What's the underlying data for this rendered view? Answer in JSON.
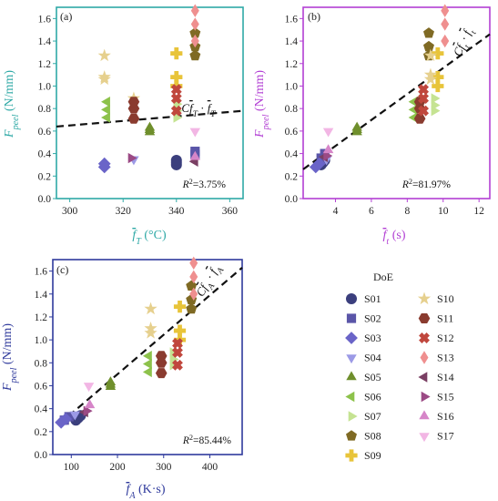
{
  "legend": {
    "title": "DoE",
    "entries": [
      {
        "name": "S01",
        "marker": "circle",
        "color": "#3b3f7d"
      },
      {
        "name": "S02",
        "marker": "square",
        "color": "#5a55a8"
      },
      {
        "name": "S03",
        "marker": "diamond",
        "color": "#6a64c8"
      },
      {
        "name": "S04",
        "marker": "triangle-down",
        "color": "#9c9ae6"
      },
      {
        "name": "S05",
        "marker": "triangle-up",
        "color": "#6f8f2c"
      },
      {
        "name": "S06",
        "marker": "triangle-left",
        "color": "#8dc24b"
      },
      {
        "name": "S07",
        "marker": "triangle-right",
        "color": "#c5e392"
      },
      {
        "name": "S08",
        "marker": "pentagon",
        "color": "#7f6a24"
      },
      {
        "name": "S09",
        "marker": "plus",
        "color": "#e8c43a"
      },
      {
        "name": "S10",
        "marker": "star",
        "color": "#e6d08e"
      },
      {
        "name": "S11",
        "marker": "hexagon",
        "color": "#8a3b2f"
      },
      {
        "name": "S12",
        "marker": "x",
        "color": "#c0473d"
      },
      {
        "name": "S13",
        "marker": "thin-diamond",
        "color": "#ef8f8f"
      },
      {
        "name": "S14",
        "marker": "triangle-left",
        "color": "#7a3f63"
      },
      {
        "name": "S15",
        "marker": "triangle-right",
        "color": "#9b4a85"
      },
      {
        "name": "S16",
        "marker": "triangle-up",
        "color": "#d685c8"
      },
      {
        "name": "S17",
        "marker": "triangle-down",
        "color": "#f2b6e4"
      }
    ]
  },
  "chart_data": [
    {
      "panel": "(a)",
      "type": "scatter",
      "frame_color": "#2fa9a6",
      "xlabel": "f̄_T (°C)",
      "ylabel": "F_peel (N/mm)",
      "xlim": [
        295,
        365
      ],
      "ylim": [
        0,
        1.7
      ],
      "xticks": [
        300,
        320,
        340,
        360
      ],
      "yticks": [
        0.0,
        0.2,
        0.4,
        0.6,
        0.8,
        1.0,
        1.2,
        1.4,
        1.6
      ],
      "fit_label": "C_f̄T · f̄_T",
      "r2_label": "R²=3.75%",
      "fit_line": {
        "x": [
          295,
          365
        ],
        "y": [
          0.64,
          0.78
        ]
      },
      "series": [
        {
          "name": "S01",
          "x": [
            340,
            340,
            340
          ],
          "y": [
            0.3,
            0.32,
            0.34
          ]
        },
        {
          "name": "S02",
          "x": [
            347,
            347
          ],
          "y": [
            0.39,
            0.42
          ]
        },
        {
          "name": "S03",
          "x": [
            313,
            313
          ],
          "y": [
            0.28,
            0.31
          ]
        },
        {
          "name": "S04",
          "x": [
            324
          ],
          "y": [
            0.35
          ]
        },
        {
          "name": "S05",
          "x": [
            330,
            330,
            330
          ],
          "y": [
            0.59,
            0.61,
            0.63
          ]
        },
        {
          "name": "S06",
          "x": [
            314,
            314,
            314
          ],
          "y": [
            0.72,
            0.79,
            0.86
          ]
        },
        {
          "name": "S07",
          "x": [
            340,
            340,
            340
          ],
          "y": [
            0.72,
            0.78,
            0.84
          ]
        },
        {
          "name": "S08",
          "x": [
            347,
            347,
            347
          ],
          "y": [
            1.27,
            1.35,
            1.47
          ]
        },
        {
          "name": "S09",
          "x": [
            340,
            340,
            340
          ],
          "y": [
            1.0,
            1.08,
            1.29
          ]
        },
        {
          "name": "S10",
          "x": [
            313,
            313,
            313,
            324
          ],
          "y": [
            1.06,
            1.08,
            1.27,
            0.89
          ]
        },
        {
          "name": "S11",
          "x": [
            324,
            324,
            324
          ],
          "y": [
            0.71,
            0.8,
            0.86
          ]
        },
        {
          "name": "S12",
          "x": [
            340,
            340,
            340
          ],
          "y": [
            0.78,
            0.89,
            0.97
          ]
        },
        {
          "name": "S13",
          "x": [
            347,
            347,
            347
          ],
          "y": [
            1.4,
            1.55,
            1.67
          ]
        },
        {
          "name": "S14",
          "x": [
            347
          ],
          "y": [
            0.33
          ]
        },
        {
          "name": "S15",
          "x": [
            323
          ],
          "y": [
            0.36
          ]
        },
        {
          "name": "S16",
          "x": [
            347
          ],
          "y": [
            0.37
          ]
        },
        {
          "name": "S17",
          "x": [
            347
          ],
          "y": [
            0.6
          ]
        }
      ]
    },
    {
      "panel": "(b)",
      "type": "scatter",
      "frame_color": "#b23fd4",
      "xlabel": "f̄_t (s)",
      "ylabel": "F_peel (N/mm)",
      "xlim": [
        2.2,
        12.6
      ],
      "ylim": [
        0,
        1.7
      ],
      "xticks": [
        4,
        6,
        8,
        10,
        12
      ],
      "yticks": [
        0.0,
        0.2,
        0.4,
        0.6,
        0.8,
        1.0,
        1.2,
        1.4,
        1.6
      ],
      "fit_label": "C_f̄t · f̄_t",
      "r2_label": "R²=81.97%",
      "fit_line": {
        "x": [
          2.2,
          12.6
        ],
        "y": [
          0.26,
          1.46
        ]
      },
      "series": [
        {
          "name": "S01",
          "x": [
            3.2,
            3.3,
            3.4
          ],
          "y": [
            0.3,
            0.32,
            0.34
          ]
        },
        {
          "name": "S02",
          "x": [
            3.2,
            3.4
          ],
          "y": [
            0.36,
            0.4
          ]
        },
        {
          "name": "S03",
          "x": [
            2.9,
            3.1
          ],
          "y": [
            0.28,
            0.31
          ]
        },
        {
          "name": "S04",
          "x": [
            3.5
          ],
          "y": [
            0.35
          ]
        },
        {
          "name": "S05",
          "x": [
            5.2,
            5.2,
            5.2
          ],
          "y": [
            0.59,
            0.61,
            0.63
          ]
        },
        {
          "name": "S06",
          "x": [
            8.4,
            8.4,
            8.4
          ],
          "y": [
            0.72,
            0.79,
            0.86
          ]
        },
        {
          "name": "S07",
          "x": [
            9.5,
            9.5,
            9.5
          ],
          "y": [
            0.78,
            0.83,
            0.89
          ]
        },
        {
          "name": "S08",
          "x": [
            9.2,
            9.2,
            9.2
          ],
          "y": [
            1.27,
            1.35,
            1.47
          ]
        },
        {
          "name": "S09",
          "x": [
            9.7,
            9.7,
            9.7
          ],
          "y": [
            1.0,
            1.08,
            1.29
          ]
        },
        {
          "name": "S10",
          "x": [
            9.3,
            9.3,
            9.3
          ],
          "y": [
            1.06,
            1.1,
            1.27
          ]
        },
        {
          "name": "S11",
          "x": [
            8.7,
            8.7,
            8.7
          ],
          "y": [
            0.71,
            0.8,
            0.86
          ]
        },
        {
          "name": "S12",
          "x": [
            8.9,
            8.9,
            8.9
          ],
          "y": [
            0.78,
            0.89,
            0.97
          ]
        },
        {
          "name": "S13",
          "x": [
            10.1,
            10.1,
            10.1
          ],
          "y": [
            1.4,
            1.55,
            1.67
          ]
        },
        {
          "name": "S14",
          "x": [
            3.4
          ],
          "y": [
            0.37
          ]
        },
        {
          "name": "S15",
          "x": [
            3.5
          ],
          "y": [
            0.38
          ]
        },
        {
          "name": "S16",
          "x": [
            3.6
          ],
          "y": [
            0.43
          ]
        },
        {
          "name": "S17",
          "x": [
            3.6
          ],
          "y": [
            0.6
          ]
        }
      ]
    },
    {
      "panel": "(c)",
      "type": "scatter",
      "frame_color": "#2f3a9c",
      "xlabel": "f̄_A (K·s)",
      "ylabel": "F_peel (N/mm)",
      "xlim": [
        60,
        470
      ],
      "ylim": [
        0,
        1.7
      ],
      "xticks": [
        100,
        200,
        300,
        400
      ],
      "yticks": [
        0.0,
        0.2,
        0.4,
        0.6,
        0.8,
        1.0,
        1.2,
        1.4,
        1.6
      ],
      "fit_label": "C_f̄A · f̄_A",
      "r2_label": "R²=85.44%",
      "fit_line": {
        "x": [
          75,
          470
        ],
        "y": [
          0.27,
          1.63
        ]
      },
      "series": [
        {
          "name": "S01",
          "x": [
            110,
            115,
            120
          ],
          "y": [
            0.3,
            0.32,
            0.34
          ]
        },
        {
          "name": "S02",
          "x": [
            85,
            95
          ],
          "y": [
            0.3,
            0.33
          ]
        },
        {
          "name": "S03",
          "x": [
            78,
            88
          ],
          "y": [
            0.28,
            0.31
          ]
        },
        {
          "name": "S04",
          "x": [
            108
          ],
          "y": [
            0.35
          ]
        },
        {
          "name": "S05",
          "x": [
            185,
            185,
            185
          ],
          "y": [
            0.59,
            0.61,
            0.63
          ]
        },
        {
          "name": "S06",
          "x": [
            268,
            268,
            268
          ],
          "y": [
            0.72,
            0.79,
            0.86
          ]
        },
        {
          "name": "S07",
          "x": [
            320,
            320,
            320
          ],
          "y": [
            0.78,
            0.83,
            0.89
          ]
        },
        {
          "name": "S08",
          "x": [
            360,
            360,
            360
          ],
          "y": [
            1.27,
            1.35,
            1.47
          ]
        },
        {
          "name": "S09",
          "x": [
            335,
            335,
            335
          ],
          "y": [
            1.0,
            1.08,
            1.29
          ]
        },
        {
          "name": "S10",
          "x": [
            272,
            272,
            272
          ],
          "y": [
            1.06,
            1.1,
            1.27
          ]
        },
        {
          "name": "S11",
          "x": [
            295,
            295,
            295
          ],
          "y": [
            0.71,
            0.8,
            0.86
          ]
        },
        {
          "name": "S12",
          "x": [
            330,
            330,
            330
          ],
          "y": [
            0.78,
            0.89,
            0.97
          ]
        },
        {
          "name": "S13",
          "x": [
            365,
            365,
            365
          ],
          "y": [
            1.4,
            1.55,
            1.67
          ]
        },
        {
          "name": "S14",
          "x": [
            130
          ],
          "y": [
            0.37
          ]
        },
        {
          "name": "S15",
          "x": [
            133
          ],
          "y": [
            0.38
          ]
        },
        {
          "name": "S16",
          "x": [
            140
          ],
          "y": [
            0.43
          ]
        },
        {
          "name": "S17",
          "x": [
            138
          ],
          "y": [
            0.6
          ]
        }
      ]
    }
  ]
}
